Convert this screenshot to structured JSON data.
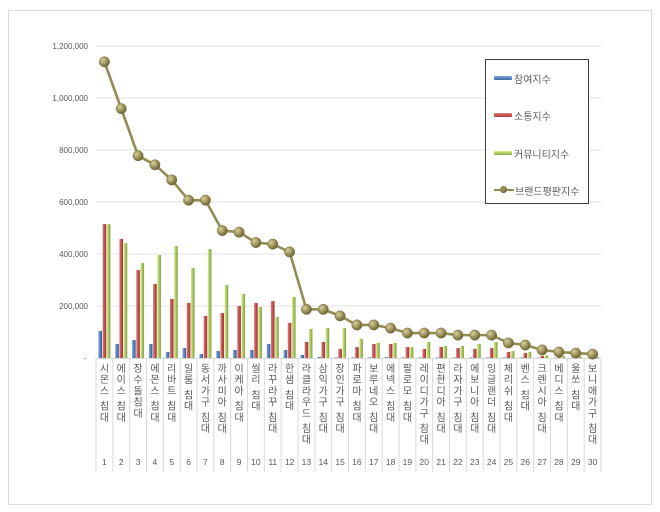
{
  "chart_data": {
    "type": "bar",
    "title": "",
    "xlabel": "",
    "ylabel": "",
    "ylim": [
      0,
      1200000
    ],
    "yticks": [
      0,
      200000,
      400000,
      600000,
      800000,
      1000000,
      1200000
    ],
    "ytick_labels": [
      "-",
      "200,000",
      "400,000",
      "600,000",
      "800,000",
      "1,000,000",
      "1,200,000"
    ],
    "grid": true,
    "legend_position": "right-top",
    "categories": [
      "시몬스 침대",
      "에이스 침대",
      "장수돌침대",
      "에몬스 침대",
      "리바트 침대",
      "일룸 침대",
      "동서가구 침대",
      "까사미아 침대",
      "이케아 침대",
      "씰리 침대",
      "라꾸라꾸 침대",
      "한샘 침대",
      "라클라우드 침대",
      "삼익가구 침대",
      "장인가구 침대",
      "파로마 침대",
      "보루네오 침대",
      "에넥스 침대",
      "팔로모 침대",
      "레이디가구 침대",
      "편한디아 침대",
      "라자가구 침대",
      "에보니아 침대",
      "잉글랜더 침대",
      "체리쉬 침대",
      "벤스 침대",
      "크렌시아 침대",
      "베디스 침대",
      "울쏘 침대",
      "보니애가구 침대"
    ],
    "ranks": [
      "1",
      "2",
      "3",
      "4",
      "5",
      "6",
      "7",
      "8",
      "9",
      "10",
      "11",
      "12",
      "13",
      "14",
      "15",
      "16",
      "17",
      "18",
      "19",
      "20",
      "21",
      "22",
      "23",
      "24",
      "25",
      "26",
      "27",
      "28",
      "29",
      "30"
    ],
    "series": [
      {
        "name": "참여지수",
        "type": "bar",
        "color": "#4f81bd",
        "values": [
          104000,
          54000,
          69000,
          54000,
          23000,
          38000,
          15000,
          27000,
          31000,
          31000,
          54000,
          31000,
          12000,
          4000,
          2000,
          2000,
          2000,
          3000,
          2000,
          2000,
          2000,
          2000,
          2000,
          2000,
          2000,
          2000,
          1000,
          1000,
          1000,
          1000
        ]
      },
      {
        "name": "소통지수",
        "type": "bar",
        "color": "#c0504d",
        "values": [
          515000,
          458000,
          338000,
          285000,
          227000,
          212000,
          162000,
          173000,
          200000,
          212000,
          219000,
          135000,
          62000,
          62000,
          35000,
          42000,
          54000,
          54000,
          42000,
          35000,
          42000,
          38000,
          35000,
          38000,
          23000,
          19000,
          8000,
          6000,
          5000,
          4000
        ]
      },
      {
        "name": "커뮤니티지수",
        "type": "bar",
        "color": "#9bbb59",
        "values": [
          515000,
          442000,
          365000,
          396000,
          431000,
          346000,
          419000,
          281000,
          246000,
          196000,
          158000,
          235000,
          112000,
          115000,
          115000,
          73000,
          58000,
          58000,
          42000,
          62000,
          46000,
          46000,
          54000,
          62000,
          27000,
          23000,
          10000,
          8000,
          6000,
          5000
        ]
      },
      {
        "name": "브랜드평판지수",
        "type": "line",
        "color": "#948a54",
        "values": [
          1139000,
          959000,
          778000,
          743000,
          685000,
          607000,
          607000,
          490000,
          484000,
          444000,
          438000,
          408000,
          187000,
          187000,
          162000,
          127000,
          127000,
          115000,
          96000,
          96000,
          96000,
          88000,
          88000,
          88000,
          58000,
          50000,
          31000,
          23000,
          19000,
          15000
        ]
      }
    ]
  },
  "legend": {
    "items": [
      {
        "label": "참여지수",
        "color": "#4f81bd",
        "kind": "bar"
      },
      {
        "label": "소통지수",
        "color": "#c0504d",
        "kind": "bar"
      },
      {
        "label": "커뮤니티지수",
        "color": "#9bbb59",
        "kind": "bar"
      },
      {
        "label": "브랜드평판지수",
        "color": "#948a54",
        "kind": "line"
      }
    ]
  }
}
